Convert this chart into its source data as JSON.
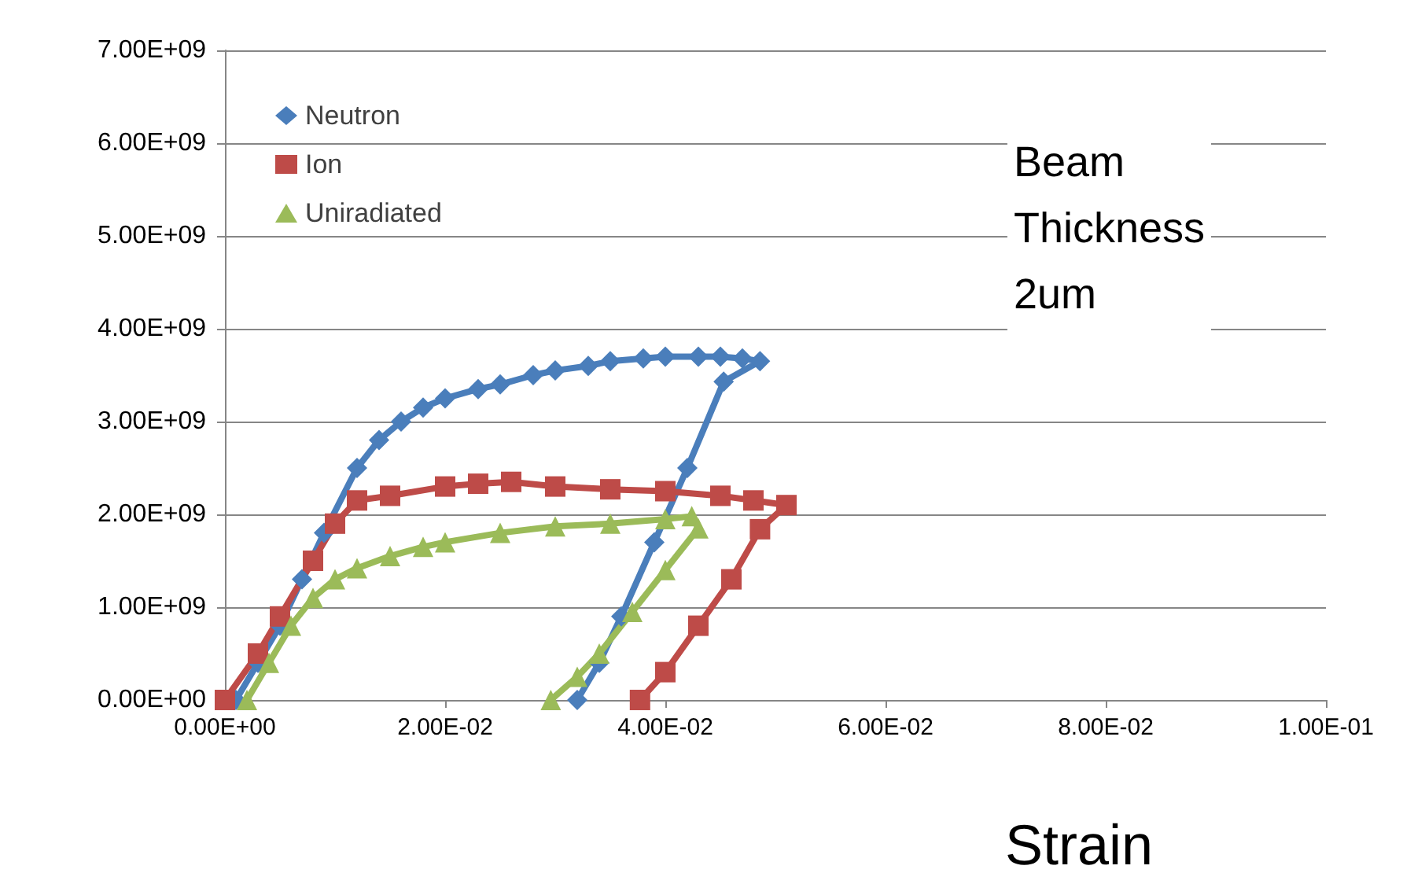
{
  "chart_data": {
    "type": "line",
    "xlabel": "Strain",
    "annotations": [
      "Beam\nThickness\n2um"
    ],
    "xlim": [
      0,
      0.1
    ],
    "xticks": [
      {
        "value": 0,
        "label": "0.00E+00"
      },
      {
        "value": 0.02,
        "label": "2.00E-02"
      },
      {
        "value": 0.04,
        "label": "4.00E-02"
      },
      {
        "value": 0.06,
        "label": "6.00E-02"
      },
      {
        "value": 0.08,
        "label": "8.00E-02"
      },
      {
        "value": 0.1,
        "label": "1.00E-01"
      }
    ],
    "ylim": [
      0,
      7000000000
    ],
    "yticks": [
      {
        "value": 0,
        "label": "0.00E+00"
      },
      {
        "value": 1000000000,
        "label": "1.00E+09"
      },
      {
        "value": 2000000000,
        "label": "2.00E+09"
      },
      {
        "value": 3000000000,
        "label": "3.00E+09"
      },
      {
        "value": 4000000000,
        "label": "4.00E+09"
      },
      {
        "value": 5000000000,
        "label": "5.00E+09"
      },
      {
        "value": 6000000000,
        "label": "6.00E+09"
      },
      {
        "value": 7000000000,
        "label": "7.00E+09"
      }
    ],
    "grid": "y",
    "legend": "top left",
    "line_style": "solid",
    "series": [
      {
        "name": "Neutron",
        "color": "#4a7ebb",
        "marker": "diamond",
        "x": [
          0.001,
          0.003,
          0.005,
          0.007,
          0.009,
          0.012,
          0.014,
          0.016,
          0.018,
          0.02,
          0.023,
          0.025,
          0.028,
          0.03,
          0.033,
          0.035,
          0.038,
          0.04,
          0.043,
          0.045,
          0.047,
          0.0486,
          0.0453,
          0.042,
          0.039,
          0.036,
          0.034,
          0.032
        ],
        "values": [
          0,
          400000000,
          800000000,
          1300000000,
          1800000000,
          2500000000,
          2800000000,
          3000000000,
          3150000000,
          3250000000,
          3350000000,
          3400000000,
          3500000000,
          3550000000,
          3600000000,
          3650000000,
          3680000000,
          3700000000,
          3700000000,
          3700000000,
          3680000000,
          3650000000,
          3430000000,
          2500000000,
          1700000000,
          900000000,
          400000000,
          0
        ]
      },
      {
        "name": "Ion",
        "color": "#be4b48",
        "marker": "square",
        "x": [
          0,
          0.003,
          0.005,
          0.008,
          0.01,
          0.012,
          0.015,
          0.02,
          0.023,
          0.026,
          0.03,
          0.035,
          0.04,
          0.045,
          0.048,
          0.051,
          0.0486,
          0.046,
          0.043,
          0.04,
          0.0377
        ],
        "values": [
          0,
          500000000,
          900000000,
          1500000000,
          1900000000,
          2150000000,
          2200000000,
          2300000000,
          2330000000,
          2350000000,
          2300000000,
          2270000000,
          2250000000,
          2200000000,
          2150000000,
          2100000000,
          1840000000,
          1300000000,
          800000000,
          300000000,
          0
        ]
      },
      {
        "name": "Uniradiated",
        "color": "#9bbb59",
        "marker": "triangle",
        "x": [
          0.002,
          0.004,
          0.006,
          0.008,
          0.01,
          0.012,
          0.015,
          0.018,
          0.02,
          0.025,
          0.03,
          0.035,
          0.04,
          0.0424,
          0.043,
          0.04,
          0.037,
          0.034,
          0.032,
          0.0296
        ],
        "values": [
          0,
          400000000,
          800000000,
          1100000000,
          1300000000,
          1420000000,
          1550000000,
          1650000000,
          1700000000,
          1800000000,
          1870000000,
          1900000000,
          1950000000,
          1980000000,
          1850000000,
          1400000000,
          950000000,
          500000000,
          250000000,
          0
        ]
      }
    ]
  }
}
